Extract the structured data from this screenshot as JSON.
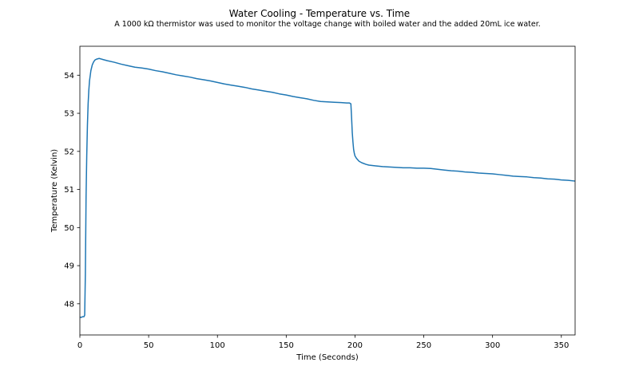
{
  "chart_data": {
    "type": "line",
    "title": "Water Cooling - Temperature vs. Time",
    "subtitle": "A 1000 kΩ thermistor was used to monitor the voltage change with boiled water and the added 20mL ice water.",
    "xlabel": "Time (Seconds)",
    "ylabel": "Temperature (Kelvin)",
    "xlim": [
      0,
      360
    ],
    "ylim": [
      47.18,
      54.76
    ],
    "xticks": [
      0,
      50,
      100,
      150,
      200,
      250,
      300,
      350
    ],
    "yticks": [
      48,
      49,
      50,
      51,
      52,
      53,
      54
    ],
    "grid": false,
    "legend": "none",
    "series": [
      {
        "color": "#1f77b4",
        "x": [
          0,
          1,
          2,
          3,
          3.5,
          4,
          4.5,
          5,
          5.5,
          6,
          6.5,
          7,
          8,
          9,
          10,
          11,
          12,
          13,
          14,
          15,
          17,
          20,
          25,
          30,
          35,
          40,
          45,
          50,
          55,
          60,
          65,
          70,
          75,
          80,
          85,
          90,
          95,
          100,
          105,
          110,
          115,
          120,
          125,
          130,
          135,
          140,
          145,
          150,
          155,
          160,
          165,
          170,
          175,
          180,
          185,
          190,
          194,
          196,
          197,
          197.5,
          198,
          198.5,
          199,
          199.5,
          200,
          201,
          202,
          203,
          205,
          208,
          210,
          215,
          220,
          225,
          230,
          235,
          240,
          245,
          250,
          255,
          260,
          265,
          270,
          275,
          280,
          285,
          290,
          295,
          300,
          305,
          310,
          315,
          320,
          325,
          330,
          335,
          340,
          345,
          350,
          355,
          360
        ],
        "y": [
          47.65,
          47.64,
          47.66,
          47.66,
          47.7,
          48.8,
          50.8,
          51.9,
          52.7,
          53.25,
          53.6,
          53.85,
          54.12,
          54.27,
          54.35,
          54.4,
          54.42,
          54.43,
          54.44,
          54.43,
          54.41,
          54.38,
          54.34,
          54.29,
          54.25,
          54.21,
          54.19,
          54.16,
          54.12,
          54.09,
          54.05,
          54.01,
          53.98,
          53.95,
          53.91,
          53.88,
          53.85,
          53.81,
          53.77,
          53.74,
          53.71,
          53.68,
          53.64,
          53.61,
          53.58,
          53.55,
          53.51,
          53.48,
          53.44,
          53.41,
          53.38,
          53.34,
          53.31,
          53.3,
          53.29,
          53.28,
          53.27,
          53.27,
          53.25,
          52.9,
          52.5,
          52.25,
          52.05,
          51.95,
          51.88,
          51.82,
          51.78,
          51.74,
          51.7,
          51.66,
          51.64,
          51.62,
          51.6,
          51.59,
          51.58,
          51.57,
          51.57,
          51.56,
          51.56,
          51.55,
          51.53,
          51.51,
          51.49,
          51.48,
          51.46,
          51.45,
          51.43,
          51.42,
          51.41,
          51.39,
          51.37,
          51.35,
          51.34,
          51.33,
          51.31,
          51.3,
          51.28,
          51.27,
          51.25,
          51.24,
          51.22
        ]
      }
    ]
  }
}
